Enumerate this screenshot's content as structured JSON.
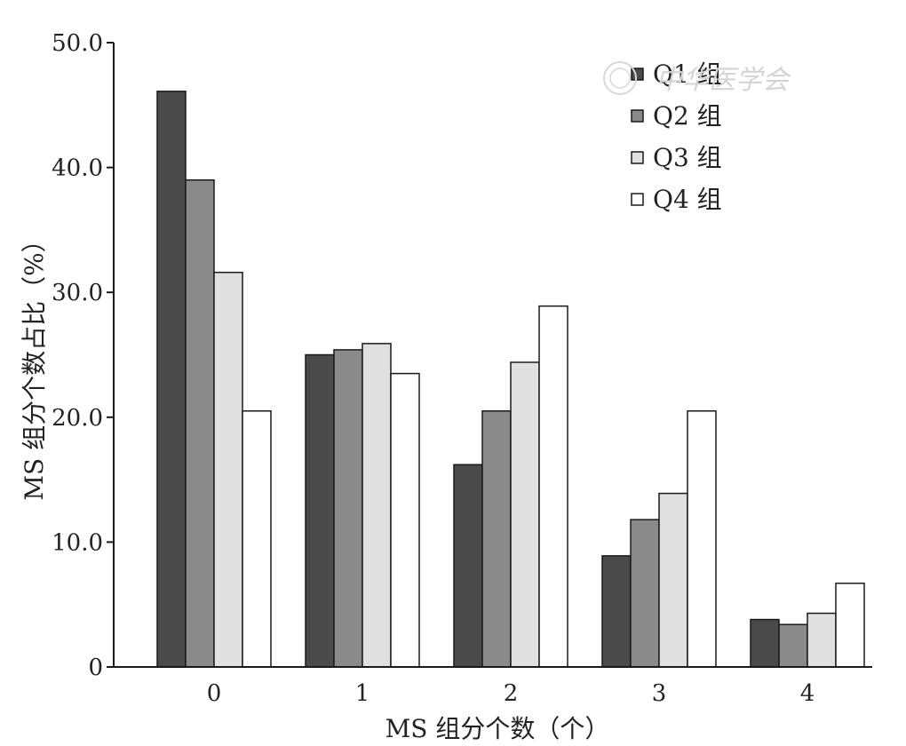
{
  "chart_data": {
    "type": "bar",
    "xlabel": "MS 组分个数（个）",
    "ylabel": "MS 组分个数占比（%）",
    "categories": [
      "0",
      "1",
      "2",
      "3",
      "4"
    ],
    "series": [
      {
        "name": "Q1 组",
        "values": [
          46.1,
          25.0,
          16.2,
          8.9,
          3.8
        ]
      },
      {
        "name": "Q2 组",
        "values": [
          39.0,
          25.4,
          20.5,
          11.8,
          3.4
        ]
      },
      {
        "name": "Q3 组",
        "values": [
          31.6,
          25.9,
          24.4,
          13.9,
          4.3
        ]
      },
      {
        "name": "Q4 组",
        "values": [
          20.5,
          23.5,
          28.9,
          20.5,
          6.7
        ]
      }
    ],
    "ylim": [
      0,
      50
    ],
    "yticks": [
      "0",
      "10.0",
      "20.0",
      "30.0",
      "40.0",
      "50.0"
    ],
    "grid": false,
    "legend_position": "top-right"
  },
  "colors": {
    "series": [
      "#4a4a4a",
      "#8a8a8a",
      "#e0e0e0",
      "#ffffff"
    ],
    "stroke": "#1a1a1a"
  },
  "watermark": "中华医学会"
}
